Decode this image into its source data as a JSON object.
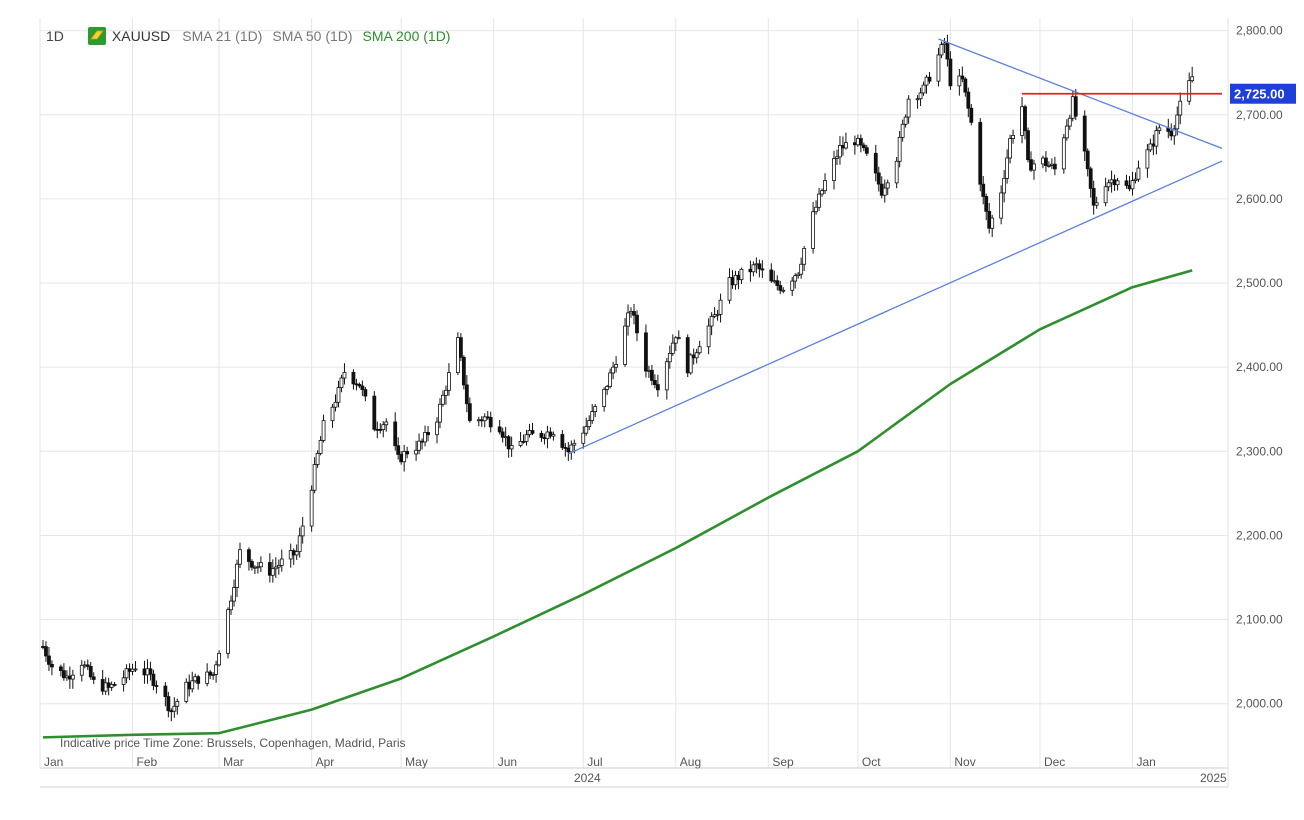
{
  "legend": {
    "interval": "1D",
    "symbol": "XAUUSD",
    "indicators": [
      {
        "label": "SMA 21 (1D)",
        "color": "#777777"
      },
      {
        "label": "SMA 50 (1D)",
        "color": "#777777"
      },
      {
        "label": "SMA 200 (1D)",
        "color": "#2f8f2f"
      }
    ],
    "symbol_icon": "gold-bar-icon"
  },
  "footer_note": "Indicative price    Time Zone: Brussels, Copenhagen, Madrid, Paris",
  "colors": {
    "candle": "#111111",
    "sma200": "#2f8f2f",
    "trendline": "#5b7fe0",
    "resistance": "#e8211f",
    "price_badge_bg": "#1e3fd8",
    "grid": "#e6e6e6"
  },
  "chart_data": {
    "type": "candlestick",
    "x_axis": {
      "months": [
        "Jan",
        "Feb",
        "Mar",
        "Apr",
        "May",
        "Jun",
        "Jul",
        "Aug",
        "Sep",
        "Oct",
        "Nov",
        "Dec",
        "Jan"
      ],
      "year_labels": [
        "2024",
        "2025"
      ]
    },
    "y_axis": {
      "ticks": [
        "2,000.00",
        "2,100.00",
        "2,200.00",
        "2,300.00",
        "2,400.00",
        "2,500.00",
        "2,600.00",
        "2,700.00",
        "2,800.00"
      ],
      "range": [
        1945,
        2815
      ]
    },
    "grid": true,
    "current_price_label": "2,725.00",
    "price_path": [
      [
        "2024-01-02",
        2068
      ],
      [
        "2024-01-05",
        2045
      ],
      [
        "2024-01-10",
        2032
      ],
      [
        "2024-01-15",
        2050
      ],
      [
        "2024-01-19",
        2025
      ],
      [
        "2024-01-24",
        2018
      ],
      [
        "2024-01-29",
        2032
      ],
      [
        "2024-02-02",
        2045
      ],
      [
        "2024-02-06",
        2035
      ],
      [
        "2024-02-09",
        2025
      ],
      [
        "2024-02-14",
        1992
      ],
      [
        "2024-02-19",
        2020
      ],
      [
        "2024-02-23",
        2030
      ],
      [
        "2024-02-28",
        2035
      ],
      [
        "2024-03-04",
        2110
      ],
      [
        "2024-03-08",
        2180
      ],
      [
        "2024-03-13",
        2165
      ],
      [
        "2024-03-18",
        2158
      ],
      [
        "2024-03-22",
        2168
      ],
      [
        "2024-03-27",
        2180
      ],
      [
        "2024-04-01",
        2260
      ],
      [
        "2024-04-05",
        2330
      ],
      [
        "2024-04-10",
        2370
      ],
      [
        "2024-04-12",
        2395
      ],
      [
        "2024-04-17",
        2380
      ],
      [
        "2024-04-22",
        2330
      ],
      [
        "2024-04-26",
        2335
      ],
      [
        "2024-04-30",
        2290
      ],
      [
        "2024-05-03",
        2300
      ],
      [
        "2024-05-08",
        2310
      ],
      [
        "2024-05-13",
        2340
      ],
      [
        "2024-05-17",
        2390
      ],
      [
        "2024-05-20",
        2430
      ],
      [
        "2024-05-24",
        2335
      ],
      [
        "2024-05-29",
        2340
      ],
      [
        "2024-06-03",
        2330
      ],
      [
        "2024-06-07",
        2300
      ],
      [
        "2024-06-12",
        2318
      ],
      [
        "2024-06-17",
        2320
      ],
      [
        "2024-06-21",
        2325
      ],
      [
        "2024-06-26",
        2300
      ],
      [
        "2024-07-02",
        2330
      ],
      [
        "2024-07-08",
        2370
      ],
      [
        "2024-07-12",
        2410
      ],
      [
        "2024-07-17",
        2470
      ],
      [
        "2024-07-22",
        2400
      ],
      [
        "2024-07-26",
        2380
      ],
      [
        "2024-08-01",
        2440
      ],
      [
        "2024-08-05",
        2400
      ],
      [
        "2024-08-09",
        2430
      ],
      [
        "2024-08-14",
        2460
      ],
      [
        "2024-08-19",
        2500
      ],
      [
        "2024-08-23",
        2510
      ],
      [
        "2024-08-28",
        2520
      ],
      [
        "2024-09-02",
        2500
      ],
      [
        "2024-09-06",
        2495
      ],
      [
        "2024-09-11",
        2515
      ],
      [
        "2024-09-16",
        2580
      ],
      [
        "2024-09-20",
        2620
      ],
      [
        "2024-09-25",
        2660
      ],
      [
        "2024-09-30",
        2670
      ],
      [
        "2024-10-04",
        2650
      ],
      [
        "2024-10-09",
        2610
      ],
      [
        "2024-10-14",
        2650
      ],
      [
        "2024-10-18",
        2720
      ],
      [
        "2024-10-23",
        2730
      ],
      [
        "2024-10-28",
        2770
      ],
      [
        "2024-10-30",
        2785
      ],
      [
        "2024-11-01",
        2740
      ],
      [
        "2024-11-05",
        2740
      ],
      [
        "2024-11-08",
        2690
      ],
      [
        "2024-11-12",
        2600
      ],
      [
        "2024-11-14",
        2565
      ],
      [
        "2024-11-18",
        2610
      ],
      [
        "2024-11-21",
        2670
      ],
      [
        "2024-11-25",
        2710
      ],
      [
        "2024-11-27",
        2640
      ],
      [
        "2024-12-02",
        2645
      ],
      [
        "2024-12-06",
        2635
      ],
      [
        "2024-12-10",
        2690
      ],
      [
        "2024-12-12",
        2715
      ],
      [
        "2024-12-16",
        2650
      ],
      [
        "2024-12-19",
        2590
      ],
      [
        "2024-12-23",
        2620
      ],
      [
        "2024-12-27",
        2625
      ],
      [
        "2024-12-31",
        2610
      ],
      [
        "2025-01-03",
        2640
      ],
      [
        "2025-01-07",
        2660
      ],
      [
        "2025-01-10",
        2685
      ],
      [
        "2025-01-14",
        2680
      ],
      [
        "2025-01-17",
        2710
      ],
      [
        "2025-01-21",
        2745
      ]
    ],
    "sma200": [
      [
        "2024-01-02",
        1960
      ],
      [
        "2024-02-01",
        1963
      ],
      [
        "2024-03-01",
        1965
      ],
      [
        "2024-04-01",
        1993
      ],
      [
        "2024-05-01",
        2030
      ],
      [
        "2024-06-01",
        2080
      ],
      [
        "2024-07-01",
        2130
      ],
      [
        "2024-08-01",
        2185
      ],
      [
        "2024-09-01",
        2245
      ],
      [
        "2024-10-01",
        2300
      ],
      [
        "2024-11-01",
        2380
      ],
      [
        "2024-12-01",
        2445
      ],
      [
        "2025-01-01",
        2495
      ],
      [
        "2025-01-21",
        2515
      ]
    ],
    "trendlines": [
      {
        "name": "upper",
        "from": [
          "2024-10-28",
          2790
        ],
        "to": [
          "2025-01-31",
          2660
        ]
      },
      {
        "name": "lower",
        "from": [
          "2024-06-26",
          2297
        ],
        "to": [
          "2025-01-31",
          2645
        ]
      }
    ],
    "resistance_line": {
      "from": [
        "2024-11-25",
        2725
      ],
      "to": [
        "2025-01-31",
        2725
      ],
      "value": 2725
    }
  }
}
